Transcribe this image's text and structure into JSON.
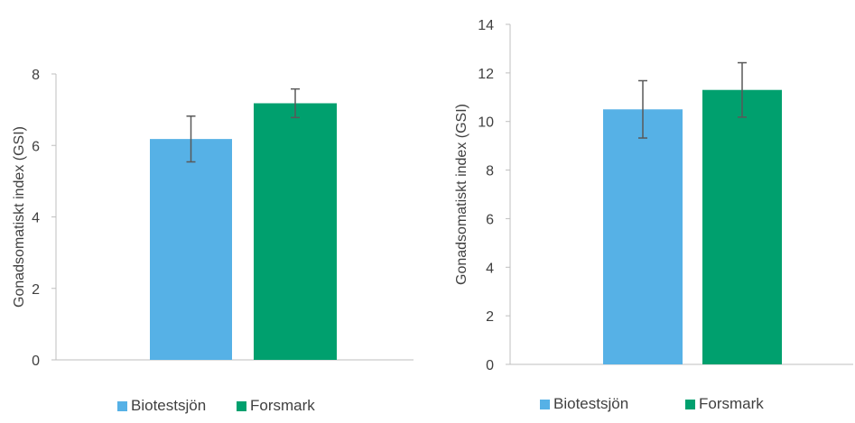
{
  "chart_data": [
    {
      "type": "bar",
      "categories": [
        ""
      ],
      "series": [
        {
          "name": "Biotestsjön",
          "values": [
            6.18
          ],
          "error": [
            0.64
          ],
          "color": "#56b1e6"
        },
        {
          "name": "Forsmark",
          "values": [
            7.18
          ],
          "error": [
            0.4
          ],
          "color": "#00a06e"
        }
      ],
      "title": "",
      "xlabel": "",
      "ylabel": "Gonadsomatiskt index (GSI)",
      "ylim": [
        0,
        8
      ],
      "yticks": [
        0,
        2,
        4,
        6,
        8
      ],
      "grid": false,
      "legend": "bottom"
    },
    {
      "type": "bar",
      "categories": [
        ""
      ],
      "series": [
        {
          "name": "Biotestsjön",
          "values": [
            10.5
          ],
          "error": [
            1.18
          ],
          "color": "#56b1e6"
        },
        {
          "name": "Forsmark",
          "values": [
            11.3
          ],
          "error": [
            1.12
          ],
          "color": "#00a06e"
        }
      ],
      "title": "",
      "xlabel": "",
      "ylabel": "Gonadsomatiskt index (GSI)",
      "ylim": [
        0,
        14
      ],
      "yticks": [
        0,
        2,
        4,
        6,
        8,
        10,
        12,
        14
      ],
      "grid": false,
      "legend": "bottom"
    }
  ]
}
